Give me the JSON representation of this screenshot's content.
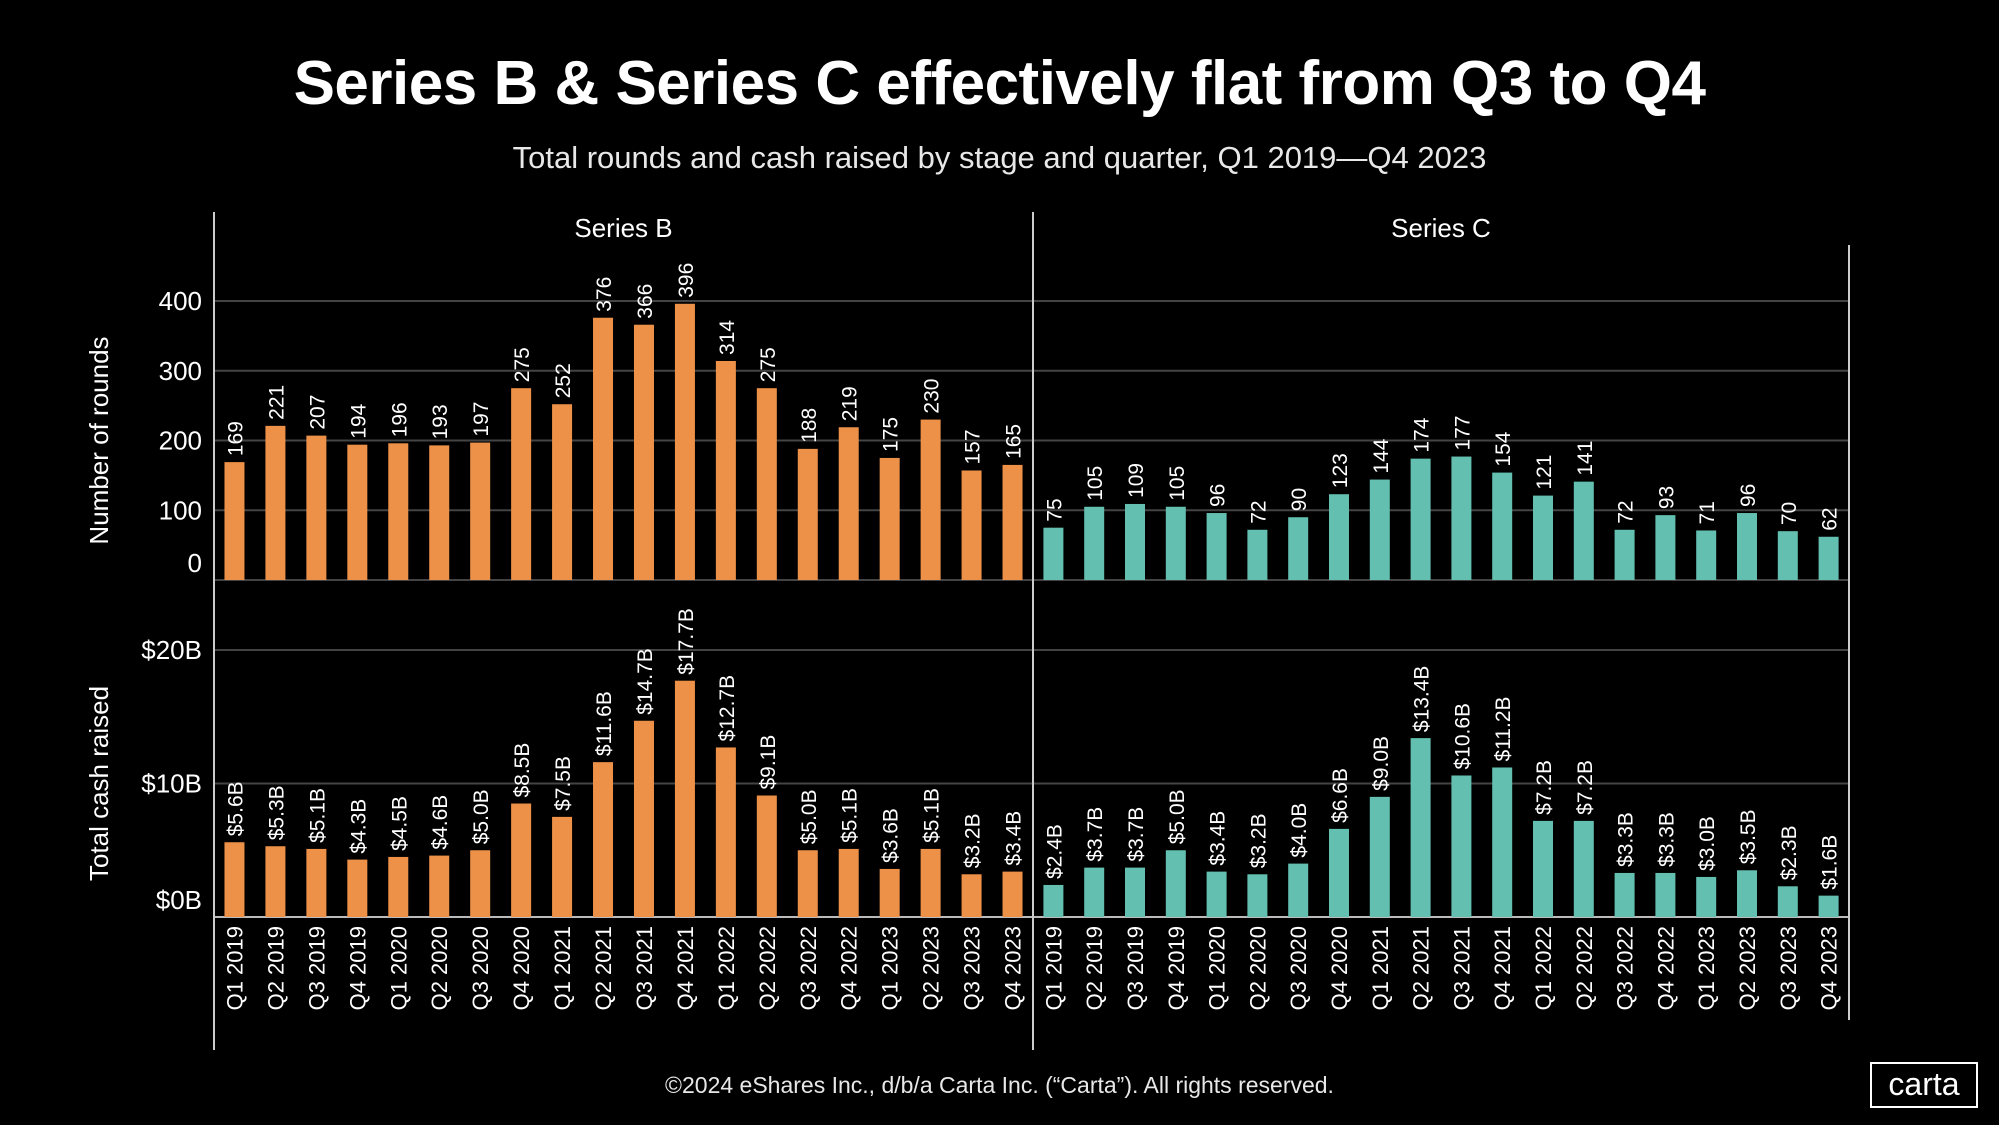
{
  "title": "Series B & Series C effectively flat from Q3 to Q4",
  "subtitle": "Total rounds and cash raised by stage and quarter, Q1 2019—Q4 2023",
  "footer": "©2024 eShares Inc., d/b/a Carta Inc. (“Carta”). All rights reserved.",
  "logo": "carta",
  "chart_data": {
    "type": "bar",
    "categories": [
      "Q1 2019",
      "Q2 2019",
      "Q3 2019",
      "Q4 2019",
      "Q1 2020",
      "Q2 2020",
      "Q3 2020",
      "Q4 2020",
      "Q1 2021",
      "Q2 2021",
      "Q3 2021",
      "Q4 2021",
      "Q1 2022",
      "Q2 2022",
      "Q3 2022",
      "Q4 2022",
      "Q1 2023",
      "Q2 2023",
      "Q3 2023",
      "Q4 2023"
    ],
    "panels": [
      {
        "name": "Series B",
        "color": "#EE9148"
      },
      {
        "name": "Series C",
        "color": "#63BFB0"
      }
    ],
    "rows": [
      {
        "ylabel": "Number of rounds",
        "ylim": [
          0,
          400
        ],
        "yticks": [
          0,
          100,
          200,
          300,
          400
        ],
        "ytick_labels": [
          "0",
          "100",
          "200",
          "300",
          "400"
        ],
        "series": [
          {
            "panel": "Series B",
            "values": [
              169,
              221,
              207,
              194,
              196,
              193,
              197,
              275,
              252,
              376,
              366,
              396,
              314,
              275,
              188,
              219,
              175,
              230,
              157,
              165
            ],
            "labels": [
              "169",
              "221",
              "207",
              "194",
              "196",
              "193",
              "197",
              "275",
              "252",
              "376",
              "366",
              "396",
              "314",
              "275",
              "188",
              "219",
              "175",
              "230",
              "157",
              "165"
            ]
          },
          {
            "panel": "Series C",
            "values": [
              75,
              105,
              109,
              105,
              96,
              72,
              90,
              123,
              144,
              174,
              177,
              154,
              121,
              141,
              72,
              93,
              71,
              96,
              70,
              62
            ],
            "labels": [
              "75",
              "105",
              "109",
              "105",
              "96",
              "72",
              "90",
              "123",
              "144",
              "174",
              "177",
              "154",
              "121",
              "141",
              "72",
              "93",
              "71",
              "96",
              "70",
              "62"
            ]
          }
        ]
      },
      {
        "ylabel": "Total cash raised",
        "ylim": [
          0,
          20
        ],
        "yticks": [
          0,
          10,
          20
        ],
        "ytick_labels": [
          "$0B",
          "$10B",
          "$20B"
        ],
        "series": [
          {
            "panel": "Series B",
            "values": [
              5.6,
              5.3,
              5.1,
              4.3,
              4.5,
              4.6,
              5.0,
              8.5,
              7.5,
              11.6,
              14.7,
              17.7,
              12.7,
              9.1,
              5.0,
              5.1,
              3.6,
              5.1,
              3.2,
              3.4
            ],
            "labels": [
              "$5.6B",
              "$5.3B",
              "$5.1B",
              "$4.3B",
              "$4.5B",
              "$4.6B",
              "$5.0B",
              "$8.5B",
              "$7.5B",
              "$11.6B",
              "$14.7B",
              "$17.7B",
              "$12.7B",
              "$9.1B",
              "$5.0B",
              "$5.1B",
              "$3.6B",
              "$5.1B",
              "$3.2B",
              "$3.4B"
            ]
          },
          {
            "panel": "Series C",
            "values": [
              2.4,
              3.7,
              3.7,
              5.0,
              3.4,
              3.2,
              4.0,
              6.6,
              9.0,
              13.4,
              10.6,
              11.2,
              7.2,
              7.2,
              3.3,
              3.3,
              3.0,
              3.5,
              2.3,
              1.6
            ],
            "labels": [
              "$2.4B",
              "$3.7B",
              "$3.7B",
              "$5.0B",
              "$3.4B",
              "$3.2B",
              "$4.0B",
              "$6.6B",
              "$9.0B",
              "$13.4B",
              "$10.6B",
              "$11.2B",
              "$7.2B",
              "$7.2B",
              "$3.3B",
              "$3.3B",
              "$3.0B",
              "$3.5B",
              "$2.3B",
              "$1.6B"
            ]
          }
        ]
      }
    ],
    "grid": true,
    "legend": "none"
  }
}
